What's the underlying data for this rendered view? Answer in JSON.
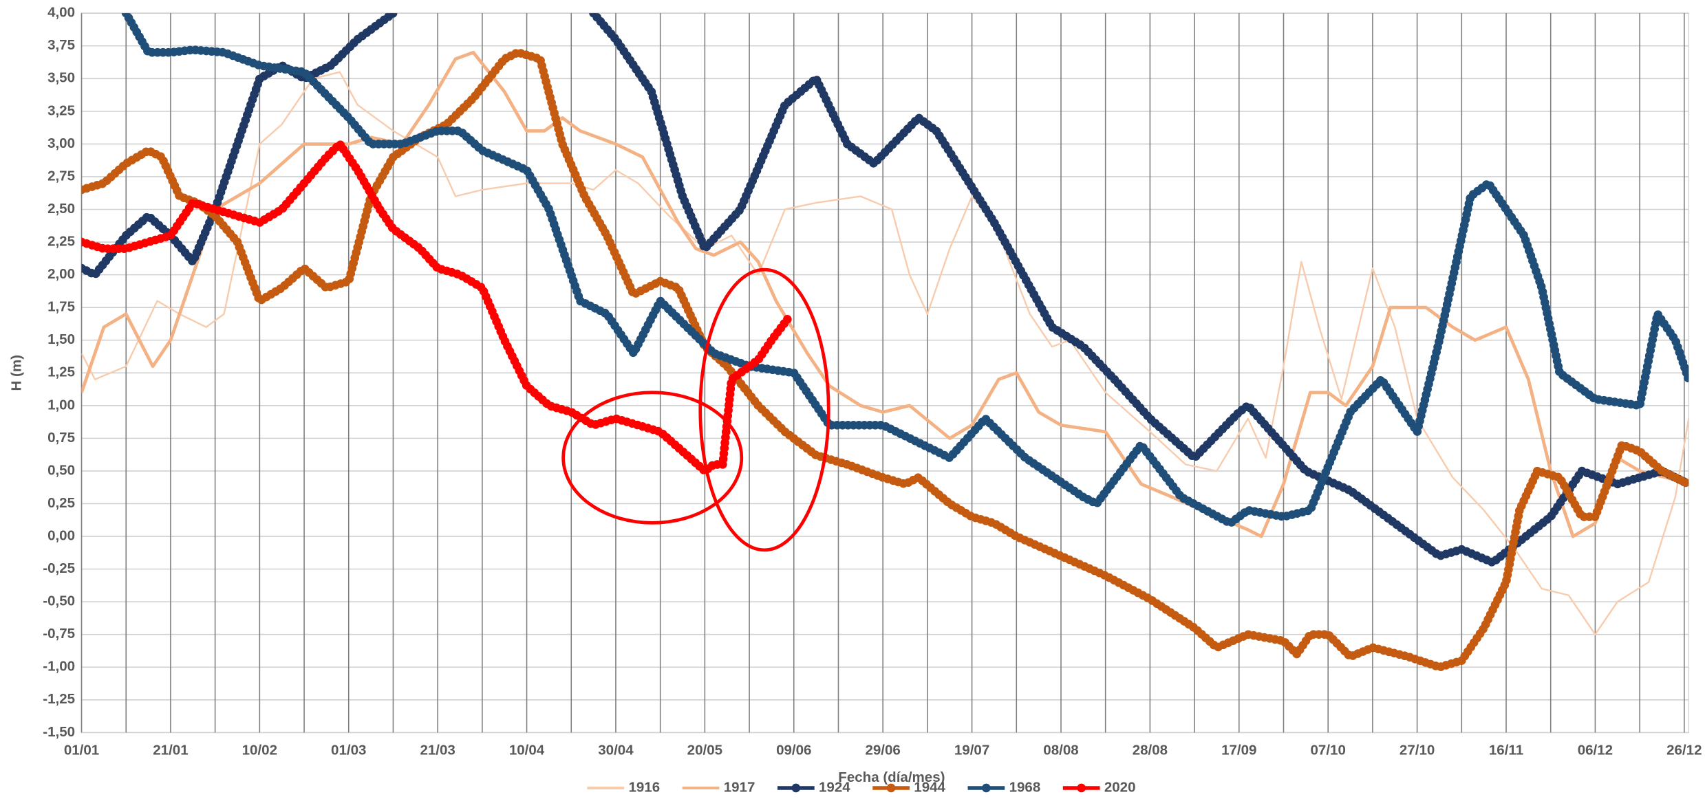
{
  "chart_data": {
    "type": "line",
    "y_label": "H (m)",
    "x_label": "Fecha (día/mes)",
    "xlim": [
      0,
      361
    ],
    "xticks": [
      {
        "value": 0,
        "label": "01/01"
      },
      {
        "value": 20,
        "label": "21/01"
      },
      {
        "value": 40,
        "label": "10/02"
      },
      {
        "value": 60,
        "label": "01/03"
      },
      {
        "value": 80,
        "label": "21/03"
      },
      {
        "value": 100,
        "label": "10/04"
      },
      {
        "value": 120,
        "label": "30/04"
      },
      {
        "value": 140,
        "label": "20/05"
      },
      {
        "value": 160,
        "label": "09/06"
      },
      {
        "value": 180,
        "label": "29/06"
      },
      {
        "value": 200,
        "label": "19/07"
      },
      {
        "value": 220,
        "label": "08/08"
      },
      {
        "value": 240,
        "label": "28/08"
      },
      {
        "value": 260,
        "label": "17/09"
      },
      {
        "value": 280,
        "label": "07/10"
      },
      {
        "value": 300,
        "label": "27/10"
      },
      {
        "value": 320,
        "label": "16/11"
      },
      {
        "value": 340,
        "label": "06/12"
      },
      {
        "value": 360,
        "label": "26/12"
      }
    ],
    "ylim": [
      -1.5,
      4
    ],
    "yticks": [
      {
        "value": -1.5,
        "label": "-1,50"
      },
      {
        "value": -1.25,
        "label": "-1,25"
      },
      {
        "value": -1,
        "label": "-1,00"
      },
      {
        "value": -0.75,
        "label": "-0,75"
      },
      {
        "value": -0.5,
        "label": "-0,50"
      },
      {
        "value": -0.25,
        "label": "-0,25"
      },
      {
        "value": 0,
        "label": "0,00"
      },
      {
        "value": 0.25,
        "label": "0,25"
      },
      {
        "value": 0.5,
        "label": "0,50"
      },
      {
        "value": 0.75,
        "label": "0,75"
      },
      {
        "value": 1,
        "label": "1,00"
      },
      {
        "value": 1.25,
        "label": "1,25"
      },
      {
        "value": 1.5,
        "label": "1,50"
      },
      {
        "value": 1.75,
        "label": "1,75"
      },
      {
        "value": 2,
        "label": "2,00"
      },
      {
        "value": 2.25,
        "label": "2,25"
      },
      {
        "value": 2.5,
        "label": "2,50"
      },
      {
        "value": 2.75,
        "label": "2,75"
      },
      {
        "value": 3,
        "label": "3,00"
      },
      {
        "value": 3.25,
        "label": "3,25"
      },
      {
        "value": 3.5,
        "label": "3,50"
      },
      {
        "value": 3.75,
        "label": "3,75"
      },
      {
        "value": 4,
        "label": "4,00"
      }
    ],
    "grid": true,
    "legend": "bottom",
    "series": [
      {
        "name": "1916",
        "color": "#f8cbad",
        "markers": false,
        "x": [
          0,
          3,
          10,
          17,
          22,
          28,
          32,
          40,
          45,
          52,
          58,
          62,
          70,
          80,
          84,
          90,
          100,
          110,
          115,
          120,
          125,
          132,
          140,
          146,
          152,
          158,
          165,
          175,
          182,
          186,
          190,
          195,
          200,
          205,
          213,
          218,
          222,
          230,
          240,
          248,
          255,
          262,
          266,
          270,
          274,
          278,
          283,
          290,
          295,
          300,
          308,
          315,
          322,
          328,
          334,
          340,
          345,
          352,
          358,
          361
        ],
        "values": [
          1.4,
          1.2,
          1.3,
          1.8,
          1.7,
          1.6,
          1.7,
          3.0,
          3.15,
          3.5,
          3.55,
          3.3,
          3.1,
          2.9,
          2.6,
          2.65,
          2.7,
          2.7,
          2.65,
          2.8,
          2.7,
          2.45,
          2.2,
          2.3,
          2.0,
          2.5,
          2.55,
          2.6,
          2.5,
          2.0,
          1.7,
          2.2,
          2.6,
          2.4,
          1.7,
          1.45,
          1.5,
          1.1,
          0.8,
          0.55,
          0.5,
          0.9,
          0.6,
          1.3,
          2.1,
          1.6,
          1.05,
          2.05,
          1.6,
          0.9,
          0.45,
          0.2,
          -0.1,
          -0.4,
          -0.45,
          -0.75,
          -0.5,
          -0.35,
          0.3,
          0.9
        ]
      },
      {
        "name": "1917",
        "color": "#f4b183",
        "markers": false,
        "x": [
          0,
          5,
          10,
          16,
          20,
          25,
          30,
          35,
          40,
          50,
          60,
          65,
          72,
          78,
          84,
          88,
          95,
          100,
          104,
          108,
          112,
          120,
          126,
          134,
          138,
          142,
          148,
          152,
          156,
          163,
          168,
          175,
          180,
          186,
          195,
          200,
          206,
          210,
          215,
          220,
          230,
          238,
          245,
          255,
          262,
          265,
          270,
          276,
          280,
          284,
          290,
          294,
          302,
          308,
          313,
          320,
          325,
          330,
          335,
          340,
          345,
          350,
          356,
          361
        ],
        "values": [
          1.1,
          1.6,
          1.7,
          1.3,
          1.5,
          2.0,
          2.5,
          2.6,
          2.7,
          3.0,
          3.0,
          3.05,
          3.0,
          3.3,
          3.65,
          3.7,
          3.4,
          3.1,
          3.1,
          3.2,
          3.1,
          3.0,
          2.9,
          2.4,
          2.2,
          2.15,
          2.25,
          2.1,
          1.8,
          1.4,
          1.15,
          1.0,
          0.95,
          1.0,
          0.75,
          0.85,
          1.2,
          1.25,
          0.95,
          0.85,
          0.8,
          0.4,
          0.3,
          0.15,
          0.05,
          0.0,
          0.4,
          1.1,
          1.1,
          1.0,
          1.3,
          1.75,
          1.75,
          1.6,
          1.5,
          1.6,
          1.2,
          0.5,
          0.0,
          0.1,
          0.6,
          0.5,
          0.45,
          0.4
        ]
      },
      {
        "name": "1924",
        "color": "#203864",
        "markers": true,
        "x": [
          0,
          3,
          10,
          15,
          20,
          25,
          30,
          40,
          45,
          50,
          56,
          62,
          70,
          90,
          115,
          120,
          128,
          135,
          140,
          148,
          158,
          165,
          172,
          178,
          188,
          192,
          205,
          218,
          225,
          232,
          240,
          250,
          260,
          262,
          275,
          285,
          295,
          305,
          310,
          317,
          330,
          337,
          345,
          355,
          361
        ],
        "values": [
          2.05,
          2.0,
          2.3,
          2.45,
          2.3,
          2.1,
          2.5,
          3.5,
          3.6,
          3.5,
          3.6,
          3.8,
          4.0,
          null,
          4.0,
          3.8,
          3.4,
          2.6,
          2.2,
          2.5,
          3.3,
          3.5,
          3.0,
          2.85,
          3.2,
          3.1,
          2.4,
          1.6,
          1.45,
          1.2,
          0.9,
          0.6,
          0.95,
          1.0,
          0.5,
          0.35,
          0.1,
          -0.15,
          -0.1,
          -0.2,
          0.15,
          0.5,
          0.4,
          0.5,
          0.4
        ]
      },
      {
        "name": "1944",
        "color": "#c55a11",
        "markers": true,
        "x": [
          0,
          5,
          10,
          15,
          18,
          22,
          26,
          30,
          35,
          40,
          45,
          50,
          55,
          60,
          65,
          70,
          76,
          82,
          88,
          95,
          98,
          103,
          108,
          113,
          118,
          124,
          130,
          134,
          140,
          145,
          152,
          158,
          165,
          172,
          180,
          185,
          188,
          195,
          200,
          205,
          210,
          220,
          230,
          240,
          250,
          255,
          262,
          270,
          273,
          276,
          280,
          285,
          290,
          298,
          305,
          310,
          315,
          320,
          323,
          327,
          332,
          337,
          340,
          346,
          350,
          355,
          361
        ],
        "values": [
          2.65,
          2.7,
          2.85,
          2.95,
          2.9,
          2.6,
          2.55,
          2.45,
          2.25,
          1.8,
          1.9,
          2.05,
          1.9,
          1.95,
          2.6,
          2.9,
          3.05,
          3.15,
          3.35,
          3.65,
          3.7,
          3.65,
          3.0,
          2.6,
          2.3,
          1.85,
          1.95,
          1.9,
          1.45,
          1.3,
          1.0,
          0.8,
          0.62,
          0.55,
          0.45,
          0.4,
          0.45,
          0.25,
          0.15,
          0.1,
          0.0,
          -0.15,
          -0.3,
          -0.48,
          -0.7,
          -0.85,
          -0.75,
          -0.8,
          -0.9,
          -0.75,
          -0.75,
          -0.92,
          -0.85,
          -0.92,
          -1.0,
          -0.95,
          -0.7,
          -0.35,
          0.2,
          0.5,
          0.45,
          0.15,
          0.15,
          0.7,
          0.65,
          0.5,
          0.4
        ]
      },
      {
        "name": "1968",
        "color": "#1f4e79",
        "markers": true,
        "x": [
          10,
          15,
          20,
          25,
          32,
          40,
          50,
          60,
          65,
          72,
          80,
          85,
          90,
          100,
          105,
          112,
          118,
          124,
          130,
          142,
          150,
          160,
          168,
          180,
          195,
          203,
          212,
          225,
          228,
          238,
          247,
          258,
          262,
          270,
          276,
          285,
          292,
          300,
          305,
          312,
          316,
          324,
          328,
          332,
          340,
          350,
          354,
          358,
          361
        ],
        "values": [
          4.0,
          3.7,
          3.7,
          3.72,
          3.7,
          3.6,
          3.55,
          3.2,
          3.0,
          3.0,
          3.1,
          3.1,
          2.95,
          2.8,
          2.5,
          1.8,
          1.7,
          1.4,
          1.8,
          1.4,
          1.3,
          1.25,
          0.85,
          0.85,
          0.6,
          0.9,
          0.6,
          0.3,
          0.25,
          0.7,
          0.3,
          0.1,
          0.2,
          0.15,
          0.2,
          0.95,
          1.2,
          0.8,
          1.5,
          2.6,
          2.7,
          2.3,
          1.9,
          1.25,
          1.05,
          1.0,
          1.7,
          1.5,
          1.2
        ]
      },
      {
        "name": "2020",
        "color": "#ff0000",
        "markers": true,
        "x": [
          0,
          5,
          10,
          15,
          20,
          25,
          30,
          35,
          40,
          45,
          50,
          55,
          58,
          62,
          67,
          70,
          76,
          80,
          85,
          90,
          95,
          100,
          105,
          110,
          115,
          120,
          125,
          130,
          135,
          140,
          142,
          144,
          146,
          148,
          152,
          155,
          159
        ],
        "values": [
          2.25,
          2.2,
          2.2,
          2.25,
          2.3,
          2.55,
          2.5,
          2.45,
          2.4,
          2.5,
          2.7,
          2.9,
          3.0,
          2.8,
          2.5,
          2.35,
          2.2,
          2.05,
          2.0,
          1.9,
          1.5,
          1.15,
          1.0,
          0.95,
          0.85,
          0.9,
          0.85,
          0.8,
          0.65,
          0.5,
          0.55,
          0.55,
          1.2,
          1.25,
          1.35,
          1.5,
          1.68
        ]
      }
    ]
  }
}
